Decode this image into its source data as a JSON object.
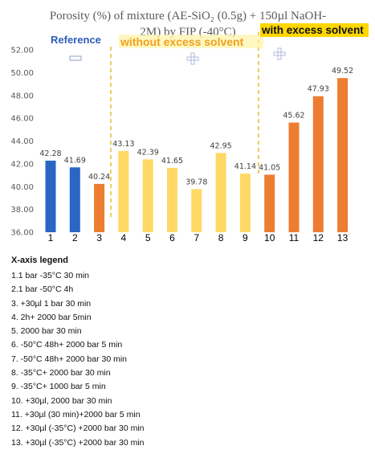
{
  "chart_data": {
    "type": "bar",
    "title_lines": [
      "Porosity (%) of mixture (AE-SiO₂ (0.5g) + 150µl NaOH-",
      "2M) by FIP (-40°C)"
    ],
    "categories": [
      "1",
      "2",
      "3",
      "4",
      "5",
      "6",
      "7",
      "8",
      "9",
      "10",
      "11",
      "12",
      "13"
    ],
    "values": [
      42.28,
      41.69,
      40.24,
      43.13,
      42.39,
      41.65,
      39.78,
      42.95,
      41.14,
      41.05,
      45.62,
      47.93,
      49.52
    ],
    "value_labels": [
      "42.28",
      "41.69",
      "40.24",
      "43.13",
      "42.39",
      "41.65",
      "39.78",
      "42.95",
      "41.14",
      "41.05",
      "45.62",
      "47.93",
      "49.52"
    ],
    "bar_colors": [
      "#2A66C4",
      "#2A66C4",
      "#ED7D31",
      "#FFD966",
      "#FFD966",
      "#FFD966",
      "#FFD966",
      "#FFD966",
      "#FFD966",
      "#ED7D31",
      "#ED7D31",
      "#ED7D31",
      "#ED7D31"
    ],
    "ylim": [
      36,
      52
    ],
    "yticks": [
      36,
      38,
      40,
      42,
      44,
      46,
      48,
      50,
      52
    ],
    "ytick_labels": [
      "36.00",
      "38.00",
      "40.00",
      "42.00",
      "44.00",
      "46.00",
      "48.00",
      "50.00",
      "52.00"
    ],
    "grid": false,
    "annotations": {
      "reference": "Reference",
      "without": "without excess solvent",
      "with": "with excess solvent"
    }
  },
  "legend": {
    "title": "X-axis legend",
    "items": [
      "1.1 bar -35°C 30 min",
      "2.1 bar -50°C 4h",
      "3. +30µl 1 bar 30 min",
      "4. 2h+ 2000 bar 5min",
      "5. 2000 bar 30 min",
      "6. -50°C 48h+ 2000 bar 5 min",
      "7. -50°C 48h+ 2000 bar 30 min",
      "8. -35°C+ 2000 bar 30 min",
      "9. -35°C+ 1000 bar 5 min",
      "10. +30µl, 2000 bar 30 min",
      "11. +30µl (30 min)+2000 bar 5 min",
      "12. +30µl (-35°C) +2000 bar 30 min",
      "13. +30µl (-35°C) +2000 bar 30 min"
    ]
  },
  "colors": {
    "reference": "#2A66C4",
    "without_excess": "#FFD966",
    "with_excess": "#ED7D31",
    "divider": "#E2B300",
    "highlight": "#FFD700"
  }
}
